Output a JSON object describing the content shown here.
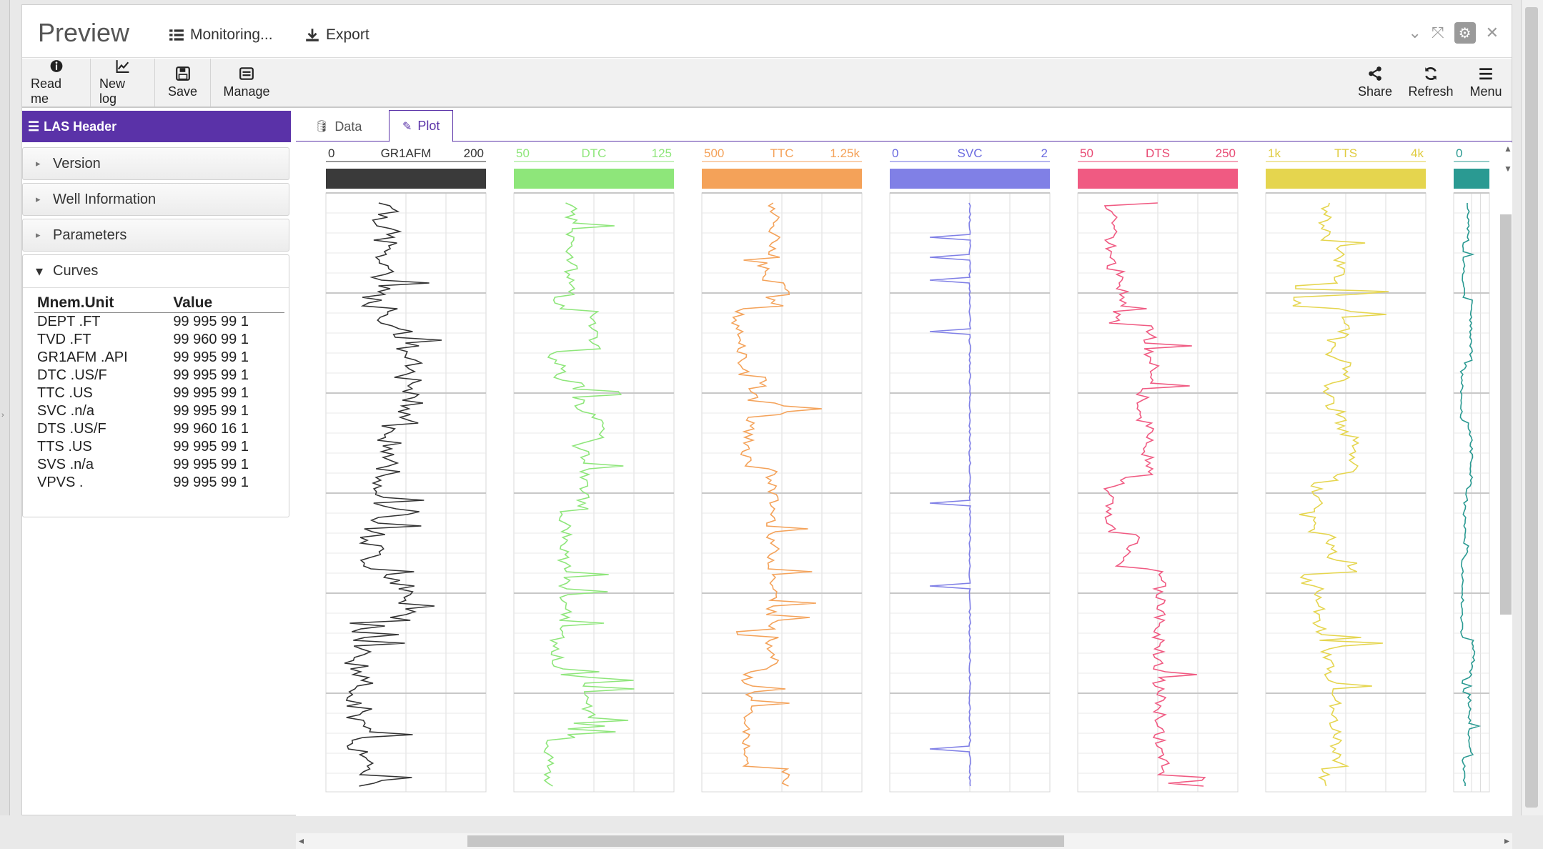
{
  "app": {
    "title": "Preview",
    "monitoring_label": "Monitoring...",
    "export_label": "Export"
  },
  "toolbar": {
    "read_me": "Read me",
    "new_log": "New log",
    "save": "Save",
    "manage": "Manage",
    "share": "Share",
    "refresh": "Refresh",
    "menu": "Menu"
  },
  "left": {
    "header": "LAS Header",
    "sections": [
      "Version",
      "Well Information",
      "Parameters"
    ],
    "curves": {
      "title": "Curves",
      "columns": [
        "Mnem.Unit",
        "Value"
      ],
      "rows": [
        {
          "mnem": "DEPT .FT",
          "value": "99 995 99 1"
        },
        {
          "mnem": "TVD .FT",
          "value": "99 960 99 1"
        },
        {
          "mnem": "GR1AFM .API",
          "value": "99 995 99 1"
        },
        {
          "mnem": "DTC .US/F",
          "value": "99 995 99 1"
        },
        {
          "mnem": "TTC .US",
          "value": "99 995 99 1"
        },
        {
          "mnem": "SVC .n/a",
          "value": "99 995 99 1"
        },
        {
          "mnem": "DTS .US/F",
          "value": "99 960 16 1"
        },
        {
          "mnem": "TTS .US",
          "value": "99 995 99 1"
        },
        {
          "mnem": "SVS .n/a",
          "value": "99 995 99 1"
        },
        {
          "mnem": "VPVS .",
          "value": "99 995 99 1"
        }
      ]
    }
  },
  "tabs": [
    "Data",
    "Plot"
  ],
  "active_tab": "Plot",
  "tracks": [
    {
      "name": "GR1AFM",
      "min": "0",
      "max": "200",
      "color": "#3a3a3a",
      "label_color": "#333333"
    },
    {
      "name": "DTC",
      "min": "50",
      "max": "125",
      "color": "#8ee67a",
      "label_color": "#8ee67a"
    },
    {
      "name": "TTC",
      "min": "500",
      "max": "1.25k",
      "color": "#f4a259",
      "label_color": "#f4a259"
    },
    {
      "name": "SVC",
      "min": "0",
      "max": "2",
      "color": "#8080e6",
      "label_color": "#6b6be0"
    },
    {
      "name": "DTS",
      "min": "50",
      "max": "250",
      "color": "#f05a82",
      "label_color": "#e84a74"
    },
    {
      "name": "TTS",
      "min": "1k",
      "max": "4k",
      "color": "#e5d54e",
      "label_color": "#e0cc40"
    },
    {
      "name": "",
      "min": "0",
      "max": "",
      "color": "#2a9a92",
      "label_color": "#2a9a92"
    }
  ]
}
